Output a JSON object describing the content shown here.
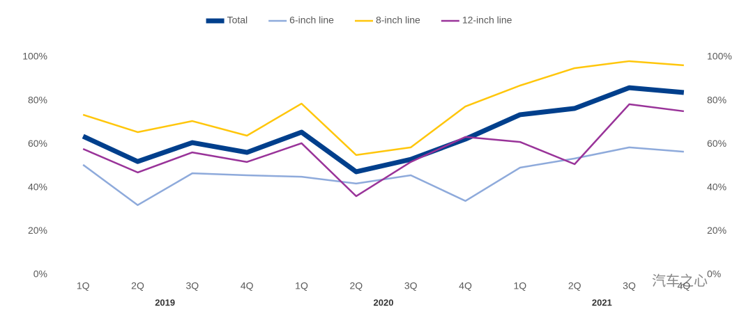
{
  "chart_data": {
    "type": "line",
    "categories": [
      "1Q",
      "2Q",
      "3Q",
      "4Q",
      "1Q",
      "2Q",
      "3Q",
      "4Q",
      "1Q",
      "2Q",
      "3Q",
      "4Q"
    ],
    "year_labels": [
      "2019",
      "2020",
      "2021"
    ],
    "series": [
      {
        "name": "Total",
        "color": "#003f8c",
        "width": 7,
        "values": [
          63.6,
          52,
          60.7,
          56.2,
          65.5,
          47.3,
          53,
          62.3,
          73.5,
          76.4,
          85.9,
          83.7
        ]
      },
      {
        "name": "6-inch line",
        "color": "#8eaadb",
        "width": 2.5,
        "values": [
          50.5,
          32,
          46.6,
          45.7,
          45,
          41.9,
          45.7,
          33.9,
          49.2,
          53.4,
          58.5,
          56.5
        ]
      },
      {
        "name": "8-inch line",
        "color": "#ffc60b",
        "width": 2.5,
        "values": [
          73.5,
          65.5,
          70.6,
          63.9,
          78.6,
          55,
          58.5,
          77.3,
          86.9,
          94.9,
          98.1,
          96.2
        ]
      },
      {
        "name": "12-inch line",
        "color": "#993399",
        "width": 2.5,
        "values": [
          57.8,
          47,
          56.2,
          51.8,
          60.4,
          36.1,
          51.8,
          63.3,
          61,
          50.8,
          78.3,
          75.1
        ]
      }
    ],
    "ylim": [
      0,
      100
    ],
    "yticks": [
      {
        "value": 0,
        "label": "0%"
      },
      {
        "value": 20,
        "label": "20%"
      },
      {
        "value": 40,
        "label": "40%"
      },
      {
        "value": 60,
        "label": "60%"
      },
      {
        "value": 80,
        "label": "80%"
      },
      {
        "value": 100,
        "label": "100%"
      }
    ],
    "y2lim": [
      0,
      100
    ],
    "y2ticks": [
      {
        "value": 0,
        "label": "0%"
      },
      {
        "value": 20,
        "label": "20%"
      },
      {
        "value": 40,
        "label": "40%"
      },
      {
        "value": 60,
        "label": "60%"
      },
      {
        "value": 80,
        "label": "80%"
      },
      {
        "value": 100,
        "label": "100%"
      }
    ],
    "legend": "top",
    "watermark": "汽车之心"
  }
}
